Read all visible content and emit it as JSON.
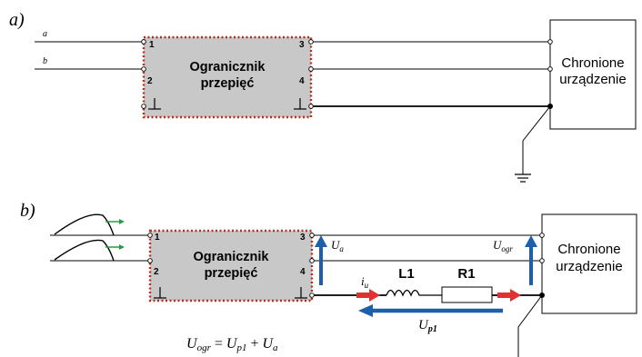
{
  "panels": {
    "a": {
      "label": "a)"
    },
    "b": {
      "label": "b)"
    }
  },
  "wires": {
    "a": "a",
    "b": "b"
  },
  "limiter": {
    "title_line1": "Ogranicznik",
    "title_line2": "przepięć",
    "pins": [
      "1",
      "2",
      "3",
      "4"
    ]
  },
  "device": {
    "title_line1": "Chronione",
    "title_line2": "urządzenie"
  },
  "components": {
    "inductor": "L1",
    "resistor": "R1"
  },
  "voltages": {
    "ua": {
      "main": "U",
      "sub": "a"
    },
    "uogr": {
      "main": "U",
      "sub": "ogr"
    },
    "up1": {
      "main": "U",
      "sub": "p1"
    },
    "iu": {
      "main": "i",
      "sub": "u"
    }
  },
  "formula": {
    "lhs_main": "U",
    "lhs_sub": "ogr",
    "eq": " = ",
    "t1_main": "U",
    "t1_sub": "p1",
    "plus": " + ",
    "t2_main": "U",
    "t2_sub": "a"
  },
  "colors": {
    "limiter_fill": "#c8c8c8",
    "limiter_border": "#b03020",
    "voltage_arrow": "#1f5faa",
    "current_arrow": "#e03030",
    "surge_arrow": "#2a9a4a"
  }
}
